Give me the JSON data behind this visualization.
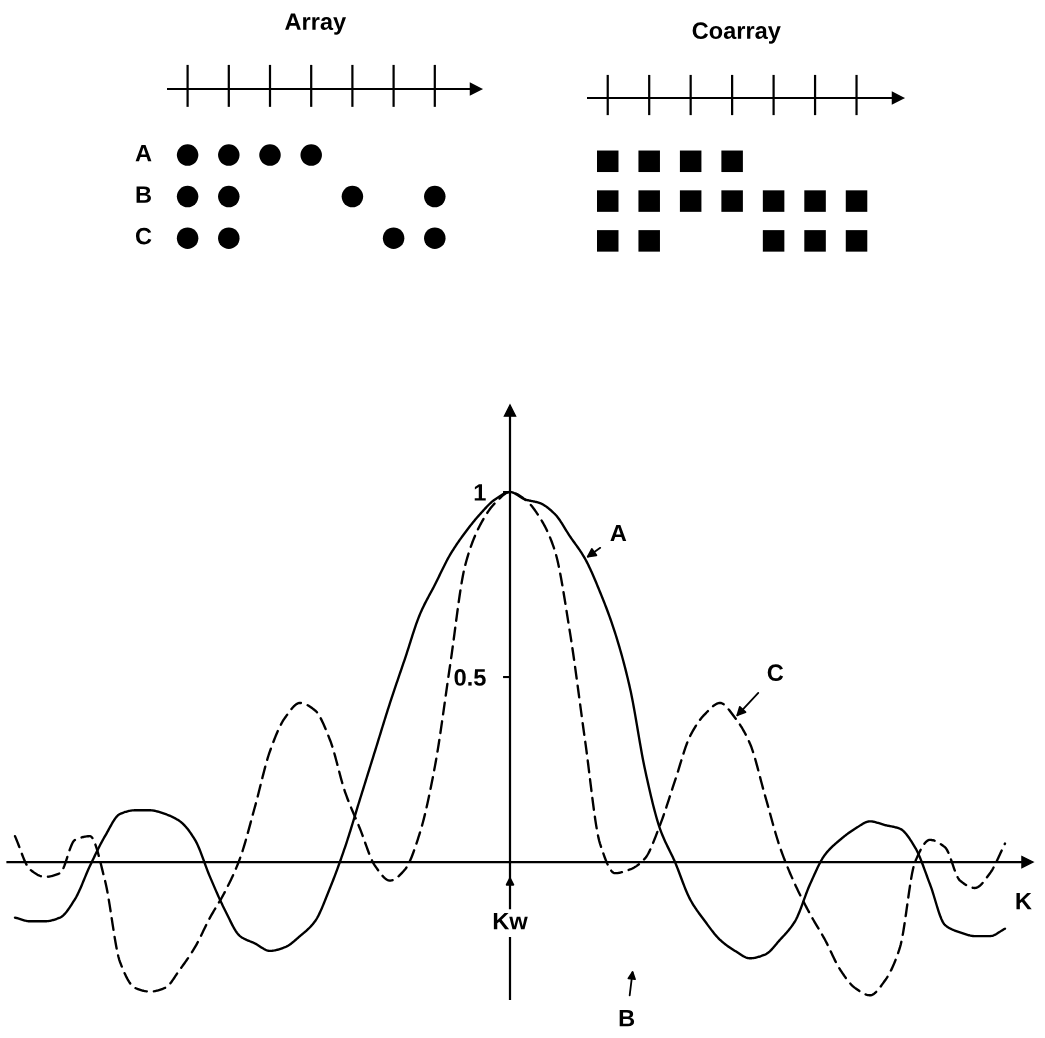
{
  "chart_data": [
    {
      "type": "other",
      "title": "Array",
      "annotations": [
        "A",
        "B",
        "C"
      ]
    },
    {
      "type": "other",
      "title": "Coarray"
    },
    {
      "type": "line",
      "xlabel": "K",
      "categories": [
        null,
        null,
        null,
        null,
        null,
        null,
        null,
        null,
        null,
        null,
        null,
        null,
        null,
        null,
        null,
        null,
        null,
        null,
        null,
        null,
        null,
        null,
        null,
        null,
        null,
        null,
        null,
        null,
        null,
        null,
        null,
        null,
        null,
        "Kw",
        null,
        null,
        null,
        null,
        null,
        null,
        null,
        null,
        null,
        null,
        null,
        null,
        null,
        null,
        null,
        null,
        null,
        null,
        null,
        null,
        null,
        null,
        null,
        null,
        null,
        null,
        null,
        null,
        null,
        null,
        null,
        null,
        null
      ],
      "ylim": [
        -0.37,
        1.22
      ],
      "yticks": [
        0.5,
        1
      ],
      "series": [
        {
          "name": "A",
          "color": "#000000",
          "line_style": "solid",
          "values": [
            -0.15,
            -0.16,
            -0.16,
            -0.15,
            -0.1,
            -0.01,
            0.07,
            0.13,
            0.14,
            0.14,
            0.13,
            0.11,
            0.06,
            -0.04,
            -0.13,
            -0.2,
            -0.22,
            -0.24,
            -0.23,
            -0.2,
            -0.16,
            -0.07,
            0.04,
            0.17,
            0.3,
            0.43,
            0.55,
            0.67,
            0.75,
            0.83,
            0.89,
            0.94,
            0.98,
            1,
            0.98,
            0.97,
            0.94,
            0.88,
            0.82,
            0.73,
            0.62,
            0.47,
            0.25,
            0.09,
            0,
            -0.1,
            -0.16,
            -0.21,
            -0.24,
            -0.26,
            -0.25,
            -0.21,
            -0.16,
            -0.06,
            0.02,
            0.06,
            0.09,
            0.11,
            0.1,
            0.09,
            0.04,
            -0.06,
            -0.17,
            -0.19,
            -0.2,
            -0.2,
            -0.18
          ]
        },
        {
          "name": "C",
          "color": "#000000",
          "line_style": "dashed",
          "values": [
            0.07,
            -0.02,
            -0.04,
            -0.03,
            0.06,
            0.07,
            -0.05,
            -0.27,
            -0.34,
            -0.35,
            -0.34,
            -0.29,
            -0.23,
            -0.15,
            -0.08,
            0.01,
            0.15,
            0.3,
            0.39,
            0.43,
            0.41,
            0.33,
            0.19,
            0.09,
            -0.01,
            -0.05,
            -0.02,
            0.08,
            0.26,
            0.53,
            0.8,
            0.91,
            0.97,
            1,
            0.98,
            0.93,
            0.84,
            0.62,
            0.33,
            0.05,
            -0.03,
            -0.02,
            0.01,
            0.1,
            0.22,
            0.34,
            0.4,
            0.43,
            0.39,
            0.32,
            0.18,
            0.04,
            -0.06,
            -0.14,
            -0.21,
            -0.29,
            -0.34,
            -0.36,
            -0.32,
            -0.23,
            0,
            0.06,
            0.04,
            -0.05,
            -0.07,
            -0.03,
            0.05
          ]
        }
      ],
      "annotations": [
        "B"
      ]
    }
  ]
}
